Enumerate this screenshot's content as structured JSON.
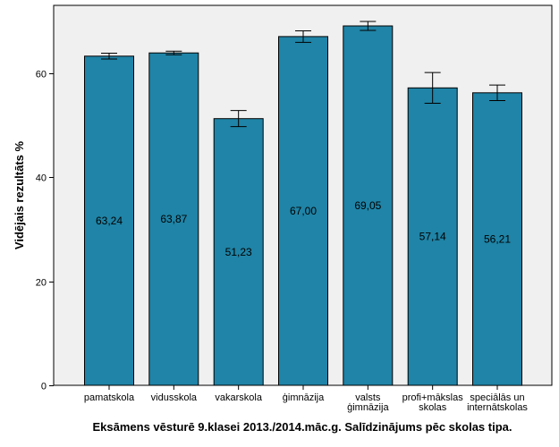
{
  "chart_data": {
    "type": "bar",
    "title": "Eksāmens vēsturē 9.klasei 2013./2014.māc.g. Salīdzinājums pēc skolas tipa.",
    "xlabel": "",
    "ylabel": "Vidējais rezultāts %",
    "ylim": [
      0,
      73
    ],
    "yticks": [
      "0",
      "20",
      "40",
      "60"
    ],
    "grid": false,
    "categories": [
      [
        "pamatskola"
      ],
      [
        "vidusskola"
      ],
      [
        "vakarskola"
      ],
      [
        "ģimnāzija"
      ],
      [
        "valsts",
        "ģimnāzija"
      ],
      [
        "profi+mākslas",
        "skolas"
      ],
      [
        "speciālās un",
        "internātskolas"
      ]
    ],
    "values": [
      63.24,
      63.87,
      51.23,
      67.0,
      69.05,
      57.14,
      56.21
    ],
    "value_labels": [
      "63,24",
      "63,87",
      "51,23",
      "67,00",
      "69,05",
      "57,14",
      "56,21"
    ],
    "error_bars": [
      [
        62.7,
        63.8
      ],
      [
        63.5,
        64.2
      ],
      [
        49.7,
        52.8
      ],
      [
        65.9,
        68.1
      ],
      [
        68.2,
        69.9
      ],
      [
        54.2,
        60.1
      ],
      [
        54.7,
        57.7
      ]
    ],
    "colors": {
      "bar_fill": "#1f84a7",
      "bar_stroke": "#000000",
      "plot_bg": "#f0f0f0",
      "axis": "#000000"
    }
  }
}
